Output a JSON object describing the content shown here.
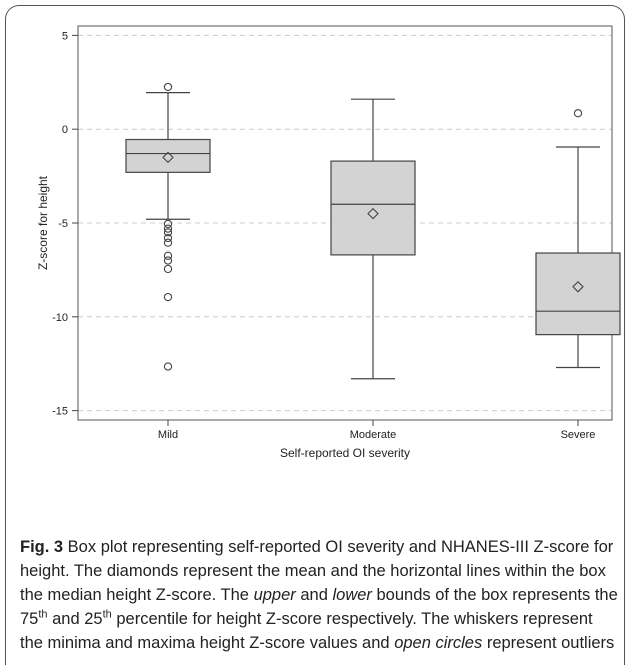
{
  "chart_data": {
    "type": "box",
    "xlabel": "Self-reported OI severity",
    "ylabel": "Z-score for height",
    "ylim": [
      -15.5,
      5.5
    ],
    "yticks": [
      5,
      0,
      -5,
      -10,
      -15
    ],
    "ytick_labels": [
      "5",
      "0",
      "-5",
      "-10",
      "-15"
    ],
    "grid": "horizontal dashed",
    "categories": [
      "Mild",
      "Moderate",
      "Severe"
    ],
    "boxes": [
      {
        "category": "Mild",
        "whisker_low": -4.8,
        "q1": -2.3,
        "median": -1.3,
        "q3": -0.55,
        "whisker_high": 1.95,
        "mean": -1.5,
        "outliers": [
          2.25,
          -5.05,
          -5.3,
          -5.5,
          -5.8,
          -6.05,
          -6.75,
          -7.0,
          -7.45,
          -8.95,
          -12.65
        ]
      },
      {
        "category": "Moderate",
        "whisker_low": -13.3,
        "q1": -6.7,
        "median": -4.0,
        "q3": -1.7,
        "whisker_high": 1.6,
        "mean": -4.5,
        "outliers": []
      },
      {
        "category": "Severe",
        "whisker_low": -12.7,
        "q1": -10.95,
        "median": -9.7,
        "q3": -6.6,
        "whisker_high": -0.95,
        "mean": -8.4,
        "outliers": [
          0.85
        ]
      }
    ],
    "colors": {
      "box_fill": "#d3d3d3",
      "stroke": "#444444",
      "grid": "#cccccc"
    }
  },
  "caption": {
    "fig_label": "Fig. 3",
    "p1": " Box plot representing self-reported OI severity and NHANES-III Z-score for height. The diamonds represent the mean and the horizontal lines within the box the median height Z-score. The ",
    "upper": "upper",
    "p2": " and ",
    "lower": "lower",
    "p3": " bounds of the box represents the 75",
    "sup1": "th",
    "p4": " and 25",
    "sup2": "th",
    "p5": " percentile for height Z-score respectively. The whiskers represent the minima and maxima height Z-score values and ",
    "open_circles": "open circles",
    "p6": " represent outliers"
  }
}
